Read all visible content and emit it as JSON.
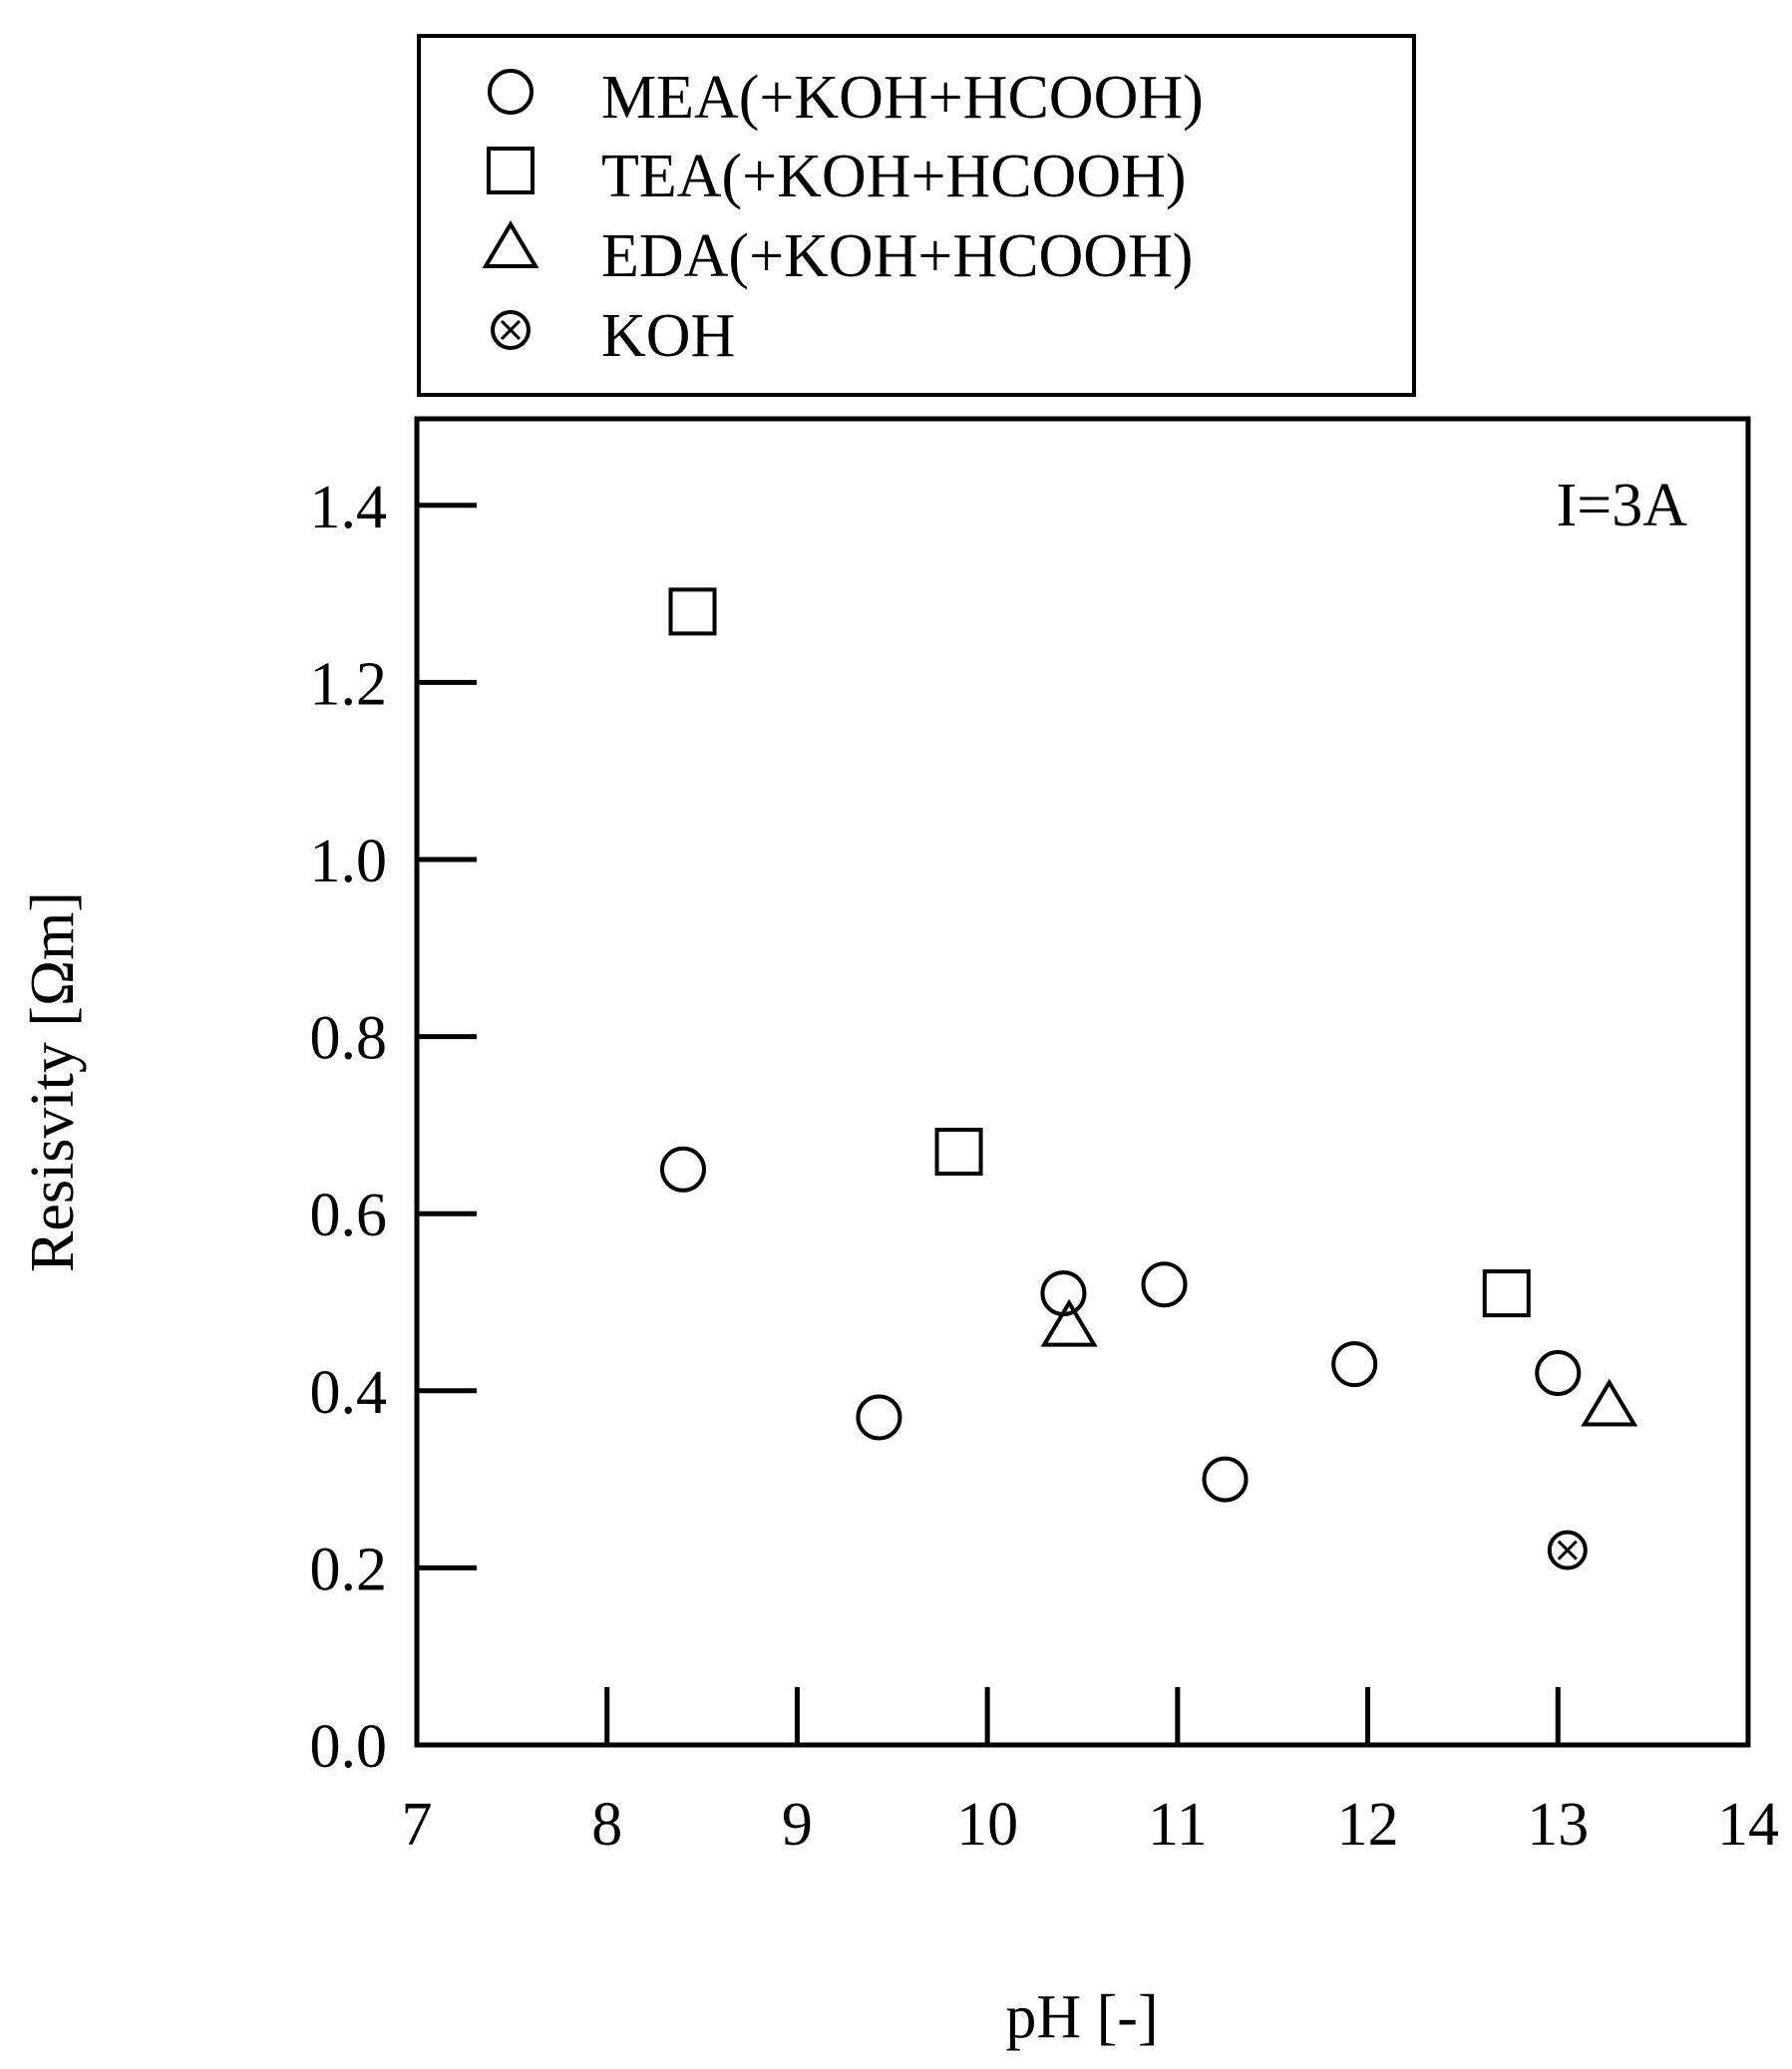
{
  "chart_data": {
    "type": "scatter",
    "title": "",
    "annotation": "I=3A",
    "xlabel": "pH [-]",
    "ylabel": "Resisvity [Ωm]",
    "xlim": [
      7,
      14
    ],
    "ylim": [
      0,
      1.5
    ],
    "x_ticks": [
      7,
      8,
      9,
      10,
      11,
      12,
      13,
      14
    ],
    "x_tick_labels": [
      "7",
      "8",
      "9",
      "10",
      "11",
      "12",
      "13",
      "14"
    ],
    "y_ticks": [
      0,
      0.2,
      0.4,
      0.6,
      0.8,
      1.0,
      1.2,
      1.4
    ],
    "y_tick_labels": [
      "0.0",
      "0.2",
      "0.4",
      "0.6",
      "0.8",
      "1.0",
      "1.2",
      "1.4"
    ],
    "grid": false,
    "legend_position": "above plot",
    "series": [
      {
        "name": "MEA(+KOH+HCOOH)",
        "marker": "circle",
        "points": [
          {
            "x": 8.4,
            "y": 0.65
          },
          {
            "x": 9.43,
            "y": 0.37
          },
          {
            "x": 10.4,
            "y": 0.51
          },
          {
            "x": 10.93,
            "y": 0.52
          },
          {
            "x": 11.25,
            "y": 0.3
          },
          {
            "x": 11.93,
            "y": 0.43
          },
          {
            "x": 13.0,
            "y": 0.42
          }
        ]
      },
      {
        "name": "TEA(+KOH+HCOOH)",
        "marker": "square",
        "points": [
          {
            "x": 8.45,
            "y": 1.28
          },
          {
            "x": 9.85,
            "y": 0.67
          },
          {
            "x": 12.73,
            "y": 0.51
          }
        ]
      },
      {
        "name": "EDA(+KOH+HCOOH)",
        "marker": "triangle",
        "points": [
          {
            "x": 10.43,
            "y": 0.47
          },
          {
            "x": 13.27,
            "y": 0.38
          }
        ]
      },
      {
        "name": "KOH",
        "marker": "circle-x",
        "points": [
          {
            "x": 13.05,
            "y": 0.22
          }
        ]
      }
    ]
  }
}
